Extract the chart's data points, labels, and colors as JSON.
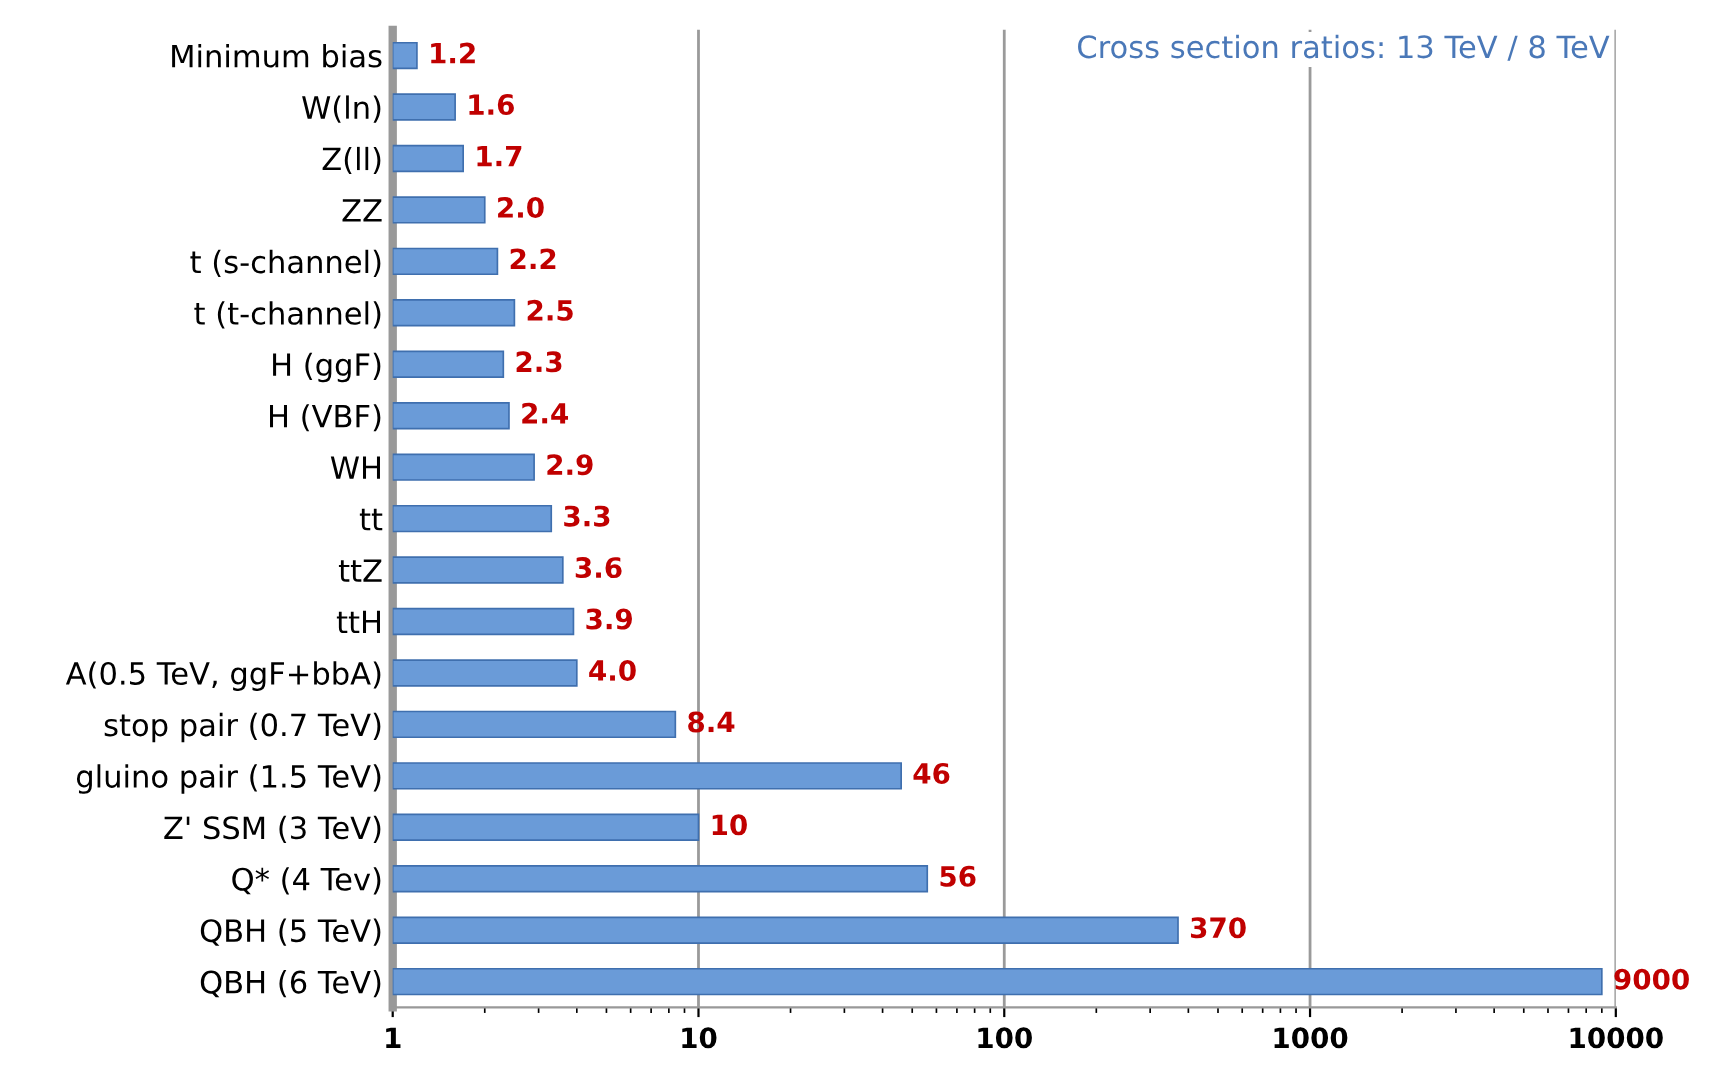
{
  "chart_data": {
    "type": "bar",
    "orientation": "horizontal",
    "title": "Cross section ratios: 13 TeV / 8 TeV",
    "categories": [
      "Minimum bias",
      "W(ln)",
      "Z(ll)",
      "ZZ",
      "t (s-channel)",
      "t (t-channel)",
      "H (ggF)",
      "H (VBF)",
      "WH",
      "tt",
      "ttZ",
      "ttH",
      "A(0.5 TeV, ggF+bbA)",
      "stop pair (0.7 TeV)",
      "gluino pair (1.5 TeV)",
      "Z' SSM (3 TeV)",
      "Q* (4 Tev)",
      "QBH (5 TeV)",
      "QBH (6 TeV)"
    ],
    "values": [
      1.2,
      1.6,
      1.7,
      2.0,
      2.2,
      2.5,
      2.3,
      2.4,
      2.9,
      3.3,
      3.6,
      3.9,
      4.0,
      8.4,
      46,
      10,
      56,
      370,
      9000
    ],
    "value_labels": [
      "1.2",
      "1.6",
      "1.7",
      "2.0",
      "2.2",
      "2.5",
      "2.3",
      "2.4",
      "2.9",
      "3.3",
      "3.6",
      "3.9",
      "4.0",
      "8.4",
      "46",
      "10",
      "56",
      "370",
      "9000"
    ],
    "color": "#6a9bd8",
    "log": "x",
    "xlim": [
      1,
      10000
    ],
    "xticks": [
      1,
      10,
      100,
      1000,
      10000
    ],
    "grid": "x"
  }
}
